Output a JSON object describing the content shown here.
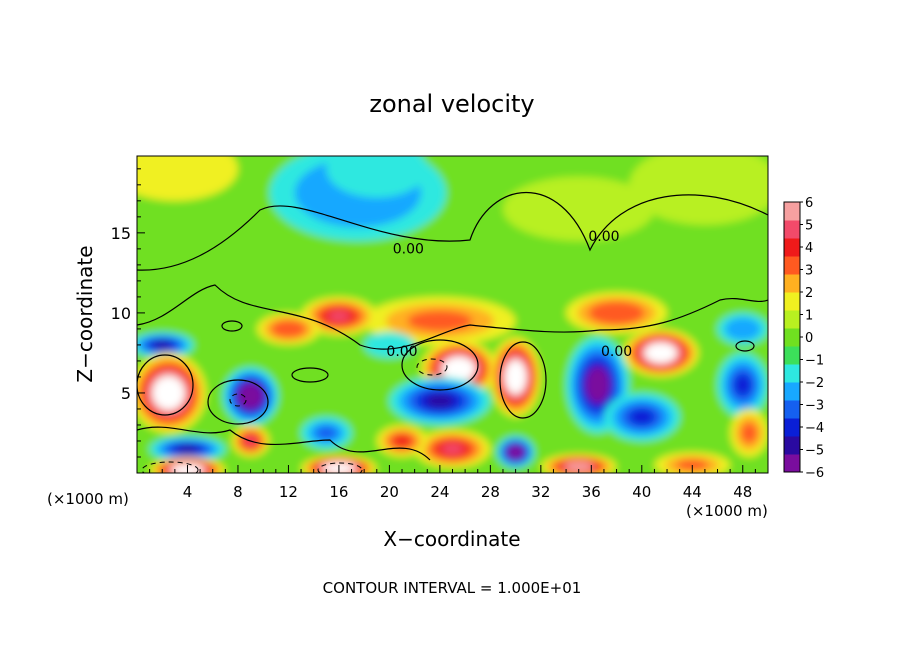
{
  "chart_data": {
    "type": "heatmap",
    "title": "zonal velocity",
    "xlabel": "X−coordinate",
    "ylabel": "Z−coordinate",
    "x_unit_left": "(×1000 m)",
    "x_unit_right": "(×1000 m)",
    "footer": "CONTOUR INTERVAL = 1.000E+01",
    "xlim": [
      0,
      50
    ],
    "ylim": [
      0,
      19.8
    ],
    "x_ticks": [
      4,
      8,
      12,
      16,
      20,
      24,
      28,
      32,
      36,
      40,
      44,
      48
    ],
    "x_tick_labels": [
      "4",
      "8",
      "12",
      "16",
      "20",
      "24",
      "28",
      "32",
      "36",
      "40",
      "44",
      "48"
    ],
    "y_ticks": [
      5,
      10,
      15
    ],
    "y_tick_labels": [
      "5",
      "10",
      "15"
    ],
    "colorbar": {
      "min": -6,
      "max": 6,
      "tick_values": [
        6,
        5,
        4,
        3,
        2,
        1,
        0,
        -1,
        -2,
        -3,
        -4,
        -5,
        -6
      ],
      "tick_labels": [
        "6",
        "5",
        "4",
        "3",
        "2",
        "1",
        "0",
        "−1",
        "−2",
        "−3",
        "−4",
        "−5",
        "−6"
      ],
      "colors": [
        "#7a0d9e",
        "#2a0aa0",
        "#0a1fd6",
        "#1560f0",
        "#18a8ff",
        "#2ee8e0",
        "#3cdf5a",
        "#70e020",
        "#b8f020",
        "#f0f020",
        "#ffb020",
        "#ff5a20",
        "#ef1a1a",
        "#f24a6a",
        "#f6a0a0"
      ]
    },
    "contour_labels": [
      {
        "text": "0.00",
        "x": 21.5,
        "y": 13.7
      },
      {
        "text": "0.00",
        "x": 37.0,
        "y": 14.5
      },
      {
        "text": "0.00",
        "x": 21.0,
        "y": 7.3
      },
      {
        "text": "0.00",
        "x": 38.0,
        "y": 7.3
      }
    ],
    "blobs": [
      {
        "x": 17.5,
        "y": 17.5,
        "rx": 7,
        "ry": 3.0,
        "v": -2.6
      },
      {
        "x": 19,
        "y": 19,
        "rx": 4,
        "ry": 1.8,
        "v": -1.6
      },
      {
        "x": 3,
        "y": 19,
        "rx": 5,
        "ry": 2.0,
        "v": 1.2
      },
      {
        "x": 45,
        "y": 18,
        "rx": 6,
        "ry": 2.5,
        "v": 1.0
      },
      {
        "x": 35,
        "y": 16.5,
        "rx": 6,
        "ry": 2,
        "v": 0.8
      },
      {
        "x": 24,
        "y": 9.5,
        "rx": 6,
        "ry": 1.5,
        "v": 2.8
      },
      {
        "x": 16,
        "y": 9.8,
        "rx": 3,
        "ry": 1.2,
        "v": 4.5
      },
      {
        "x": 12,
        "y": 9.0,
        "rx": 2.5,
        "ry": 1.0,
        "v": 3.5
      },
      {
        "x": 38,
        "y": 10,
        "rx": 4,
        "ry": 1.3,
        "v": 3.2
      },
      {
        "x": 48,
        "y": 9.0,
        "rx": 2,
        "ry": 1.0,
        "v": -2.2
      },
      {
        "x": 2,
        "y": 8.0,
        "rx": 2.5,
        "ry": 0.8,
        "v": -5
      },
      {
        "x": 2.5,
        "y": 5.0,
        "rx": 3.0,
        "ry": 2.5,
        "v": 8
      },
      {
        "x": 9,
        "y": 4.8,
        "rx": 2.2,
        "ry": 1.8,
        "v": -7
      },
      {
        "x": 9,
        "y": 2.0,
        "rx": 1.5,
        "ry": 1.0,
        "v": 5
      },
      {
        "x": 4,
        "y": 1.5,
        "rx": 3,
        "ry": 0.8,
        "v": -5
      },
      {
        "x": 4,
        "y": 0.2,
        "rx": 3,
        "ry": 0.8,
        "v": 8
      },
      {
        "x": 16,
        "y": 0.3,
        "rx": 3,
        "ry": 0.8,
        "v": 8
      },
      {
        "x": 15,
        "y": 2.5,
        "rx": 2,
        "ry": 1.0,
        "v": -3
      },
      {
        "x": 25.5,
        "y": 6.5,
        "rx": 3,
        "ry": 1.8,
        "v": 8
      },
      {
        "x": 24,
        "y": 4.5,
        "rx": 4,
        "ry": 1.5,
        "v": -5
      },
      {
        "x": 30,
        "y": 6.0,
        "rx": 2.0,
        "ry": 2.5,
        "v": 8
      },
      {
        "x": 30,
        "y": 1.3,
        "rx": 1.5,
        "ry": 1.0,
        "v": -7
      },
      {
        "x": 25,
        "y": 1.5,
        "rx": 3.0,
        "ry": 1.2,
        "v": 5
      },
      {
        "x": 21,
        "y": 2.0,
        "rx": 2,
        "ry": 1.0,
        "v": 4
      },
      {
        "x": 36.5,
        "y": 5.5,
        "rx": 2.5,
        "ry": 3.0,
        "v": -6
      },
      {
        "x": 40,
        "y": 3.5,
        "rx": 3,
        "ry": 1.5,
        "v": -4
      },
      {
        "x": 41.5,
        "y": 7.5,
        "rx": 3.0,
        "ry": 1.5,
        "v": 8
      },
      {
        "x": 48,
        "y": 5.5,
        "rx": 2,
        "ry": 2.0,
        "v": -4
      },
      {
        "x": 48.5,
        "y": 2.5,
        "rx": 1.5,
        "ry": 1.5,
        "v": 3
      },
      {
        "x": 35,
        "y": 0.4,
        "rx": 3,
        "ry": 0.8,
        "v": 6
      },
      {
        "x": 44,
        "y": 0.5,
        "rx": 3,
        "ry": 0.8,
        "v": 3
      },
      {
        "x": 20,
        "y": 8.0,
        "rx": 2,
        "ry": 0.8,
        "v": -1.5
      }
    ]
  }
}
